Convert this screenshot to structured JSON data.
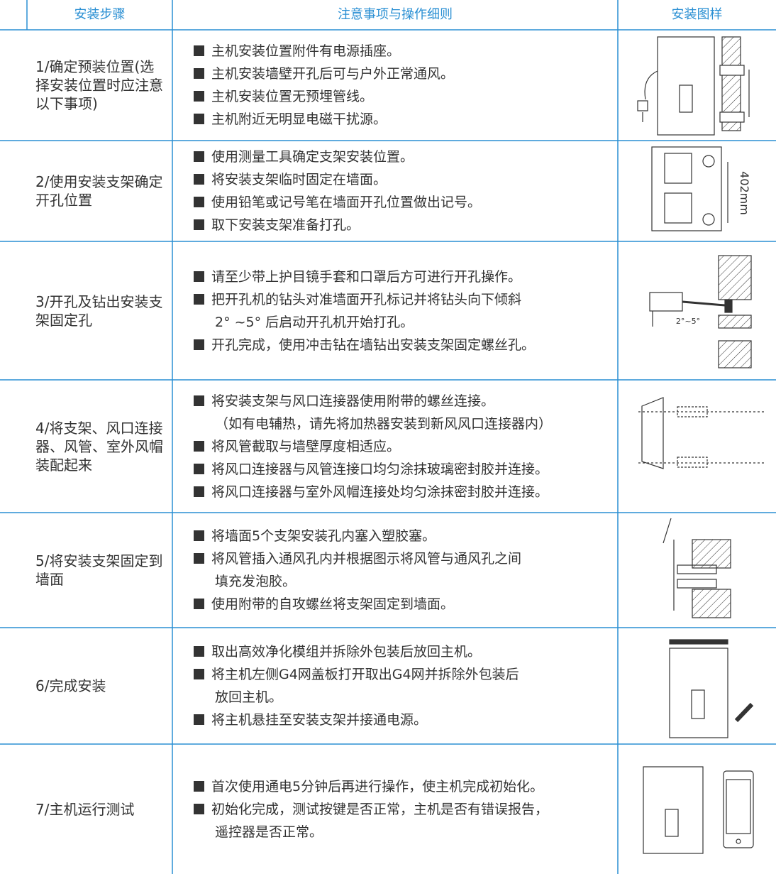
{
  "header": {
    "col1": "安装步骤",
    "col2": "注意事项与操作细则",
    "col3": "安装图样"
  },
  "rows": [
    {
      "step": "1/确定预装位置(选择安装位置时应注意以下事项)",
      "items": [
        [
          "主机安装位置附件有电源插座。"
        ],
        [
          "主机安装墙壁开孔后可与户外正常通风。"
        ],
        [
          "主机安装位置无预埋管线。"
        ],
        [
          "主机附近无明显电磁干扰源。"
        ]
      ]
    },
    {
      "step": "2/使用安装支架确定开孔位置",
      "items": [
        [
          "使用测量工具确定支架安装位置。"
        ],
        [
          "将安装支架临时固定在墙面。"
        ],
        [
          "使用铅笔或记号笔在墙面开孔位置做出记号。"
        ],
        [
          "取下安装支架准备打孔。"
        ]
      ],
      "figure_text": "402mm"
    },
    {
      "step": "3/开孔及钻出安装支架固定孔",
      "items": [
        [
          "请至少带上护目镜手套和口罩后方可进行开孔操作。"
        ],
        [
          "把开孔机的钻头对准墙面开孔标记并将钻头向下倾斜",
          "2° ~5° 后启动开孔机开始打孔。"
        ],
        [
          "开孔完成，使用冲击钻在墙钻出安装支架固定螺丝孔。"
        ]
      ],
      "figure_text": "2°~5°"
    },
    {
      "step": "4/将支架、风口连接器、风管、室外风帽装配起来",
      "items": [
        [
          "将安装支架与风口连接器使用附带的螺丝连接。",
          "（如有电辅热，请先将加热器安装到新风风口连接器内）"
        ],
        [
          "将风管截取与墙壁厚度相适应。"
        ],
        [
          "将风口连接器与风管连接口均匀涂抹玻璃密封胶并连接。"
        ],
        [
          "将风口连接器与室外风帽连接处均匀涂抹密封胶并连接。"
        ]
      ]
    },
    {
      "step": "5/将安装支架固定到墙面",
      "items": [
        [
          "将墙面5个支架安装孔内塞入塑胶塞。"
        ],
        [
          "将风管插入通风孔内并根据图示将风管与通风孔之间",
          "填充发泡胶。"
        ],
        [
          "使用附带的自攻螺丝将支架固定到墙面。"
        ]
      ]
    },
    {
      "step": "6/完成安装",
      "items": [
        [
          "取出高效净化模组并拆除外包装后放回主机。"
        ],
        [
          "将主机左侧G4网盖板打开取出G4网并拆除外包装后",
          "放回主机。"
        ],
        [
          "将主机悬挂至安装支架并接通电源。"
        ]
      ]
    },
    {
      "step": "7/主机运行测试",
      "items": [
        [
          "首次使用通电5分钟后再进行操作，使主机完成初始化。"
        ],
        [
          "初始化完成，测试按键是否正常，主机是否有错误报告，",
          "遥控器是否正常。"
        ]
      ]
    }
  ]
}
